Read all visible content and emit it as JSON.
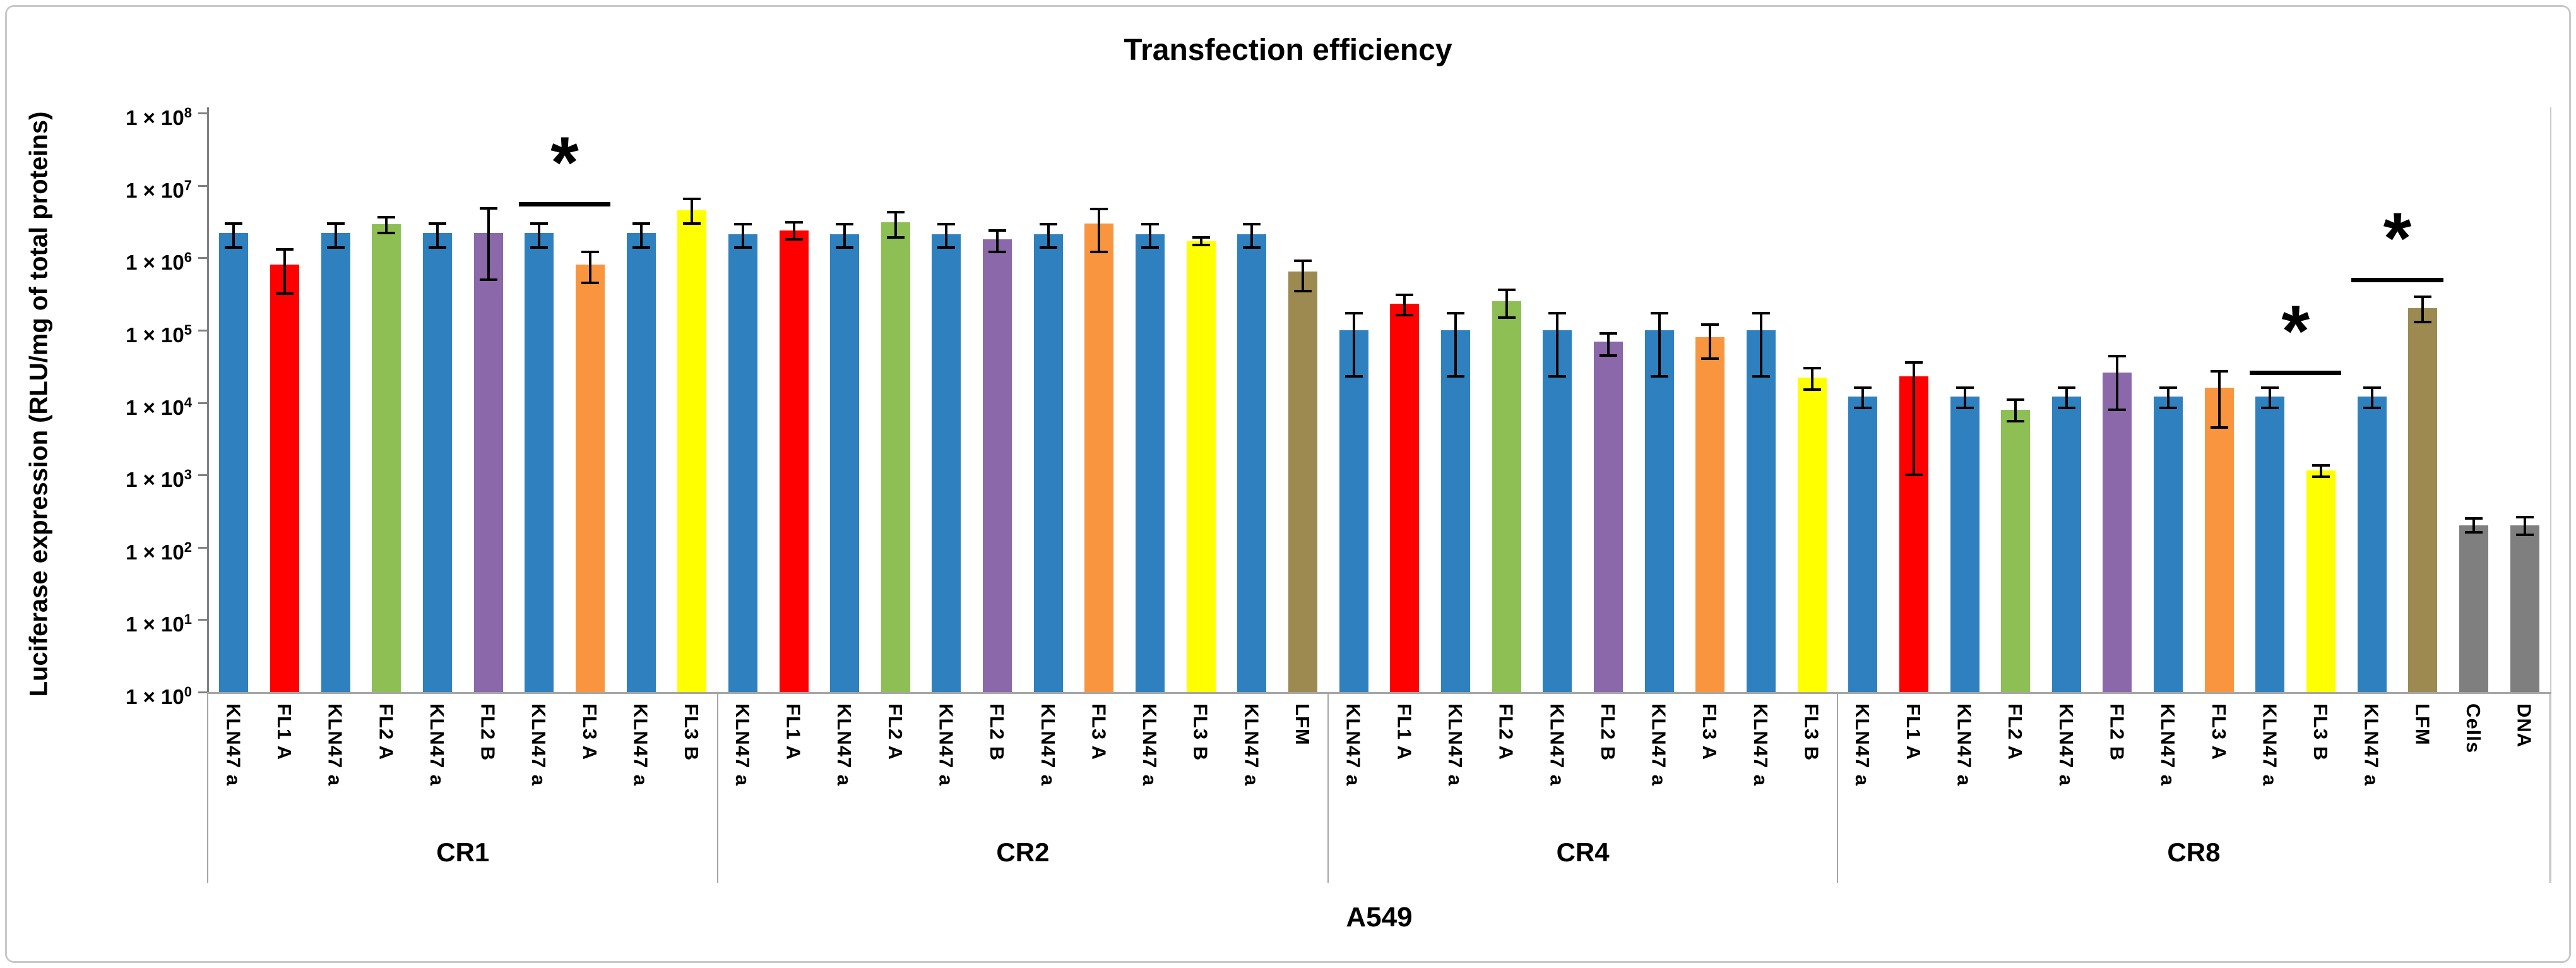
{
  "title": "Transfection efficiency",
  "y_axis": {
    "label": "Luciferase expression (RLU/mg of total proteins)",
    "tick_prefix": "1 × 10",
    "tick_exponents": [
      8,
      7,
      6,
      5,
      4,
      3,
      2,
      1,
      0
    ]
  },
  "x_axis": {
    "cell_line": "A549",
    "group_names": [
      "CR1",
      "CR2",
      "CR4",
      "CR8"
    ]
  },
  "colors": {
    "KLN47 a": "#2e81be",
    "FL1 A": "#fe0000",
    "FL2 A": "#8dbf55",
    "FL2 B": "#8a68a9",
    "FL3 A": "#f9953f",
    "FL3 B": "#ffff00",
    "LFM": "#9d8a51",
    "Cells": "#7f7f7f",
    "DNA": "#7f7f7f",
    "axis_line": "#808080",
    "baseline": "#a6a6a6",
    "error_bar": "#000000"
  },
  "chart_data": {
    "type": "bar",
    "y_scale": "log10",
    "ylim": [
      1,
      100000000
    ],
    "grid": false,
    "legend": false,
    "title": "Transfection efficiency",
    "xlabel": "A549",
    "ylabel": "Luciferase expression (RLU/mg of total proteins)",
    "groups": [
      {
        "name": "CR1",
        "bars": [
          {
            "label": "KLN47 a",
            "value": 2200000,
            "err_up": 3000000,
            "err_down": 1400000
          },
          {
            "label": "FL1 A",
            "value": 800000,
            "err_up": 1300000,
            "err_down": 320000
          },
          {
            "label": "KLN47 a",
            "value": 2200000,
            "err_up": 3000000,
            "err_down": 1400000
          },
          {
            "label": "FL2 A",
            "value": 2900000,
            "err_up": 3600000,
            "err_down": 2200000
          },
          {
            "label": "KLN47 a",
            "value": 2200000,
            "err_up": 3000000,
            "err_down": 1400000
          },
          {
            "label": "FL2 B",
            "value": 2200000,
            "err_up": 4800000,
            "err_down": 500000
          },
          {
            "label": "KLN47 a",
            "value": 2200000,
            "err_up": 3000000,
            "err_down": 1400000
          },
          {
            "label": "FL3 A",
            "value": 800000,
            "err_up": 1200000,
            "err_down": 450000
          },
          {
            "label": "KLN47 a",
            "value": 2200000,
            "err_up": 3000000,
            "err_down": 1400000
          },
          {
            "label": "FL3 B",
            "value": 4500000,
            "err_up": 6500000,
            "err_down": 3000000
          }
        ]
      },
      {
        "name": "CR2",
        "bars": [
          {
            "label": "KLN47 a",
            "value": 2100000,
            "err_up": 2900000,
            "err_down": 1400000
          },
          {
            "label": "FL1 A",
            "value": 2400000,
            "err_up": 3100000,
            "err_down": 1800000
          },
          {
            "label": "KLN47 a",
            "value": 2100000,
            "err_up": 2900000,
            "err_down": 1400000
          },
          {
            "label": "FL2 A",
            "value": 3100000,
            "err_up": 4300000,
            "err_down": 1900000
          },
          {
            "label": "KLN47 a",
            "value": 2100000,
            "err_up": 2900000,
            "err_down": 1400000
          },
          {
            "label": "FL2 B",
            "value": 1800000,
            "err_up": 2400000,
            "err_down": 1200000
          },
          {
            "label": "KLN47 a",
            "value": 2100000,
            "err_up": 2900000,
            "err_down": 1400000
          },
          {
            "label": "FL3 A",
            "value": 3000000,
            "err_up": 4700000,
            "err_down": 1200000
          },
          {
            "label": "KLN47 a",
            "value": 2100000,
            "err_up": 2900000,
            "err_down": 1400000
          },
          {
            "label": "FL3 B",
            "value": 1700000,
            "err_up": 1900000,
            "err_down": 1500000
          },
          {
            "label": "KLN47 a",
            "value": 2100000,
            "err_up": 2900000,
            "err_down": 1400000
          },
          {
            "label": "LFM",
            "value": 650000,
            "err_up": 900000,
            "err_down": 350000
          }
        ]
      },
      {
        "name": "CR4",
        "bars": [
          {
            "label": "KLN47 a",
            "value": 100000,
            "err_up": 170000,
            "err_down": 23000
          },
          {
            "label": "FL1 A",
            "value": 230000,
            "err_up": 310000,
            "err_down": 160000
          },
          {
            "label": "KLN47 a",
            "value": 100000,
            "err_up": 170000,
            "err_down": 23000
          },
          {
            "label": "FL2 A",
            "value": 250000,
            "err_up": 360000,
            "err_down": 150000
          },
          {
            "label": "KLN47 a",
            "value": 100000,
            "err_up": 170000,
            "err_down": 23000
          },
          {
            "label": "FL2 B",
            "value": 70000,
            "err_up": 90000,
            "err_down": 45000
          },
          {
            "label": "KLN47 a",
            "value": 100000,
            "err_up": 170000,
            "err_down": 23000
          },
          {
            "label": "FL3 A",
            "value": 80000,
            "err_up": 120000,
            "err_down": 40000
          },
          {
            "label": "KLN47 a",
            "value": 100000,
            "err_up": 170000,
            "err_down": 23000
          },
          {
            "label": "FL3 B",
            "value": 22000,
            "err_up": 30000,
            "err_down": 15000
          }
        ]
      },
      {
        "name": "CR8",
        "bars": [
          {
            "label": "KLN47 a",
            "value": 12000,
            "err_up": 16000,
            "err_down": 8500
          },
          {
            "label": "FL1 A",
            "value": 23000,
            "err_up": 36000,
            "err_down": 1000
          },
          {
            "label": "KLN47 a",
            "value": 12000,
            "err_up": 16000,
            "err_down": 8500
          },
          {
            "label": "FL2 A",
            "value": 8000,
            "err_up": 11000,
            "err_down": 5500
          },
          {
            "label": "KLN47 a",
            "value": 12000,
            "err_up": 16000,
            "err_down": 8500
          },
          {
            "label": "FL2 B",
            "value": 26000,
            "err_up": 44000,
            "err_down": 8000
          },
          {
            "label": "KLN47 a",
            "value": 12000,
            "err_up": 16000,
            "err_down": 8500
          },
          {
            "label": "FL3 A",
            "value": 16000,
            "err_up": 27000,
            "err_down": 4500
          },
          {
            "label": "KLN47 a",
            "value": 12000,
            "err_up": 16000,
            "err_down": 8500
          },
          {
            "label": "FL3 B",
            "value": 1150,
            "err_up": 1350,
            "err_down": 950
          },
          {
            "label": "KLN47 a",
            "value": 12000,
            "err_up": 16000,
            "err_down": 8500
          },
          {
            "label": "LFM",
            "value": 200000,
            "err_up": 290000,
            "err_down": 130000
          },
          {
            "label": "Cells",
            "value": 200,
            "err_up": 250,
            "err_down": 160
          },
          {
            "label": "DNA",
            "value": 200,
            "err_up": 260,
            "err_down": 150
          }
        ]
      }
    ],
    "significance": [
      {
        "group": "CR1",
        "from_bar": 6,
        "to_bar": 7,
        "line_value": 5500000,
        "symbol": "*"
      },
      {
        "group": "CR8",
        "from_bar": 8,
        "to_bar": 9,
        "line_value": 26000,
        "symbol": "*"
      },
      {
        "group": "CR8",
        "from_bar": 10,
        "to_bar": 11,
        "line_value": 500000,
        "symbol": "*"
      }
    ]
  }
}
